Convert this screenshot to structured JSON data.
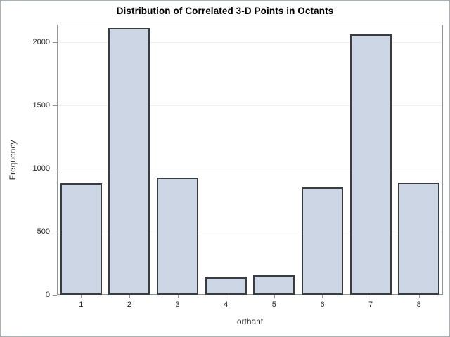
{
  "chart_data": {
    "type": "bar",
    "title": "Distribution of Correlated 3-D Points in Octants",
    "xlabel": "orthant",
    "ylabel": "Frequency",
    "categories": [
      "1",
      "2",
      "3",
      "4",
      "5",
      "6",
      "7",
      "8"
    ],
    "values": [
      885,
      2110,
      925,
      140,
      155,
      850,
      2060,
      890
    ],
    "ylim": [
      0,
      2140
    ],
    "yticks": [
      0,
      500,
      1000,
      1500,
      2000
    ],
    "legend": "none",
    "grid": "horizontal-faint",
    "colors": {
      "bar_fill": "#ccd6e4",
      "bar_border": "#3a3d40",
      "frame_border": "#919598",
      "gridline": "#f0f1f2",
      "tick": "#8f9398",
      "text": "#262626",
      "title_text": "#000000",
      "background": "#ffffff",
      "outer_border": "#a9b0b7"
    }
  }
}
